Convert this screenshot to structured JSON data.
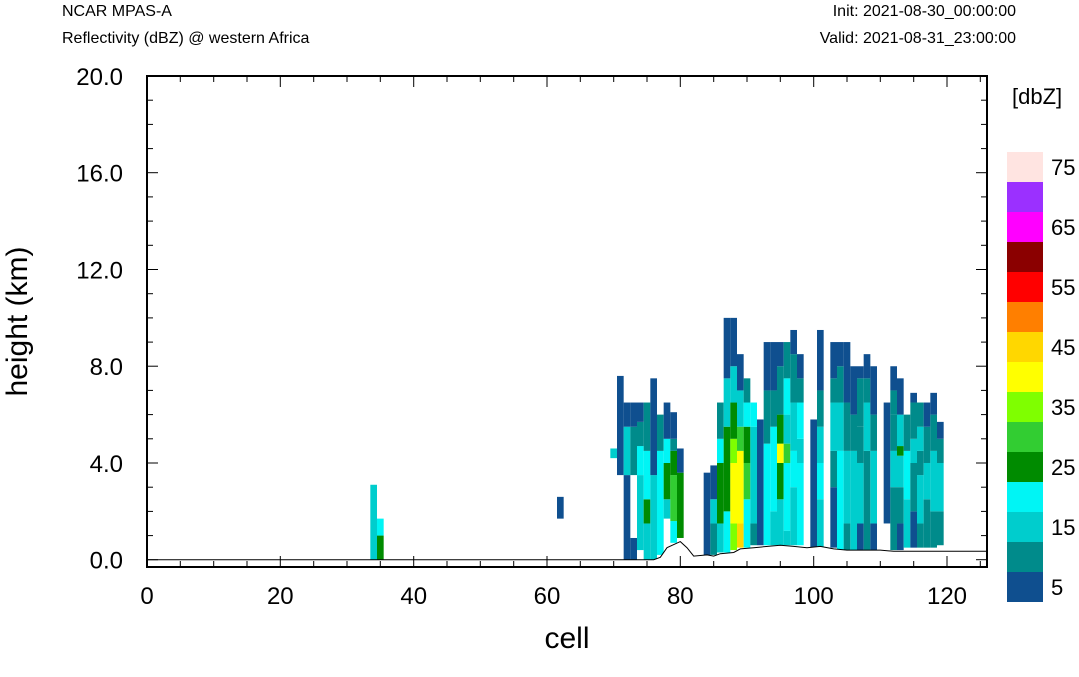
{
  "header": {
    "left_title": "NCAR MPAS-A",
    "left_subtitle": "Reflectivity (dBZ) @ western Africa",
    "right_init": "Init: 2021-08-30_00:00:00",
    "right_valid": "Valid: 2021-08-31_23:00:00"
  },
  "chart_data": {
    "type": "heatmap",
    "title": "",
    "xlabel": "cell",
    "ylabel": "height (km)",
    "xlim": [
      0,
      126
    ],
    "ylim": [
      -0.3,
      20.0
    ],
    "x_ticks": [
      0,
      20,
      40,
      60,
      80,
      100,
      120
    ],
    "x_tick_labels": [
      "0",
      "20",
      "40",
      "60",
      "80",
      "100",
      "120"
    ],
    "y_ticks": [
      0.0,
      4.0,
      8.0,
      12.0,
      16.0,
      20.0
    ],
    "y_tick_labels": [
      "0.0",
      "4.0",
      "8.0",
      "12.0",
      "16.0",
      "20.0"
    ],
    "grid": false,
    "colorbar": {
      "title": "[dbZ]",
      "levels": [
        5,
        10,
        15,
        20,
        25,
        30,
        35,
        40,
        45,
        50,
        55,
        60,
        65,
        70,
        75
      ],
      "labels": [
        "5",
        "15",
        "25",
        "35",
        "45",
        "55",
        "65",
        "75"
      ],
      "colors": [
        "#0f4f8f",
        "#008b8b",
        "#00cdcd",
        "#00f5f5",
        "#008b00",
        "#32cd32",
        "#7fff00",
        "#ffff00",
        "#ffd700",
        "#ff7f00",
        "#ff0000",
        "#8b0000",
        "#ff00ff",
        "#9b30ff",
        "#ffe4e1"
      ]
    },
    "terrain": [
      [
        0,
        0.0
      ],
      [
        76,
        0.0
      ],
      [
        77,
        0.1
      ],
      [
        78,
        0.5
      ],
      [
        80,
        0.75
      ],
      [
        81,
        0.5
      ],
      [
        82,
        0.15
      ],
      [
        84,
        0.2
      ],
      [
        85,
        0.15
      ],
      [
        86,
        0.25
      ],
      [
        88,
        0.3
      ],
      [
        89,
        0.45
      ],
      [
        91,
        0.5
      ],
      [
        95,
        0.6
      ],
      [
        97,
        0.55
      ],
      [
        99,
        0.5
      ],
      [
        101,
        0.55
      ],
      [
        103,
        0.45
      ],
      [
        105,
        0.4
      ],
      [
        110,
        0.4
      ],
      [
        112,
        0.35
      ],
      [
        120,
        0.35
      ],
      [
        126,
        0.35
      ]
    ],
    "columns": [
      {
        "cell": 34,
        "bins": [
          [
            0.0,
            3.1,
            15
          ]
        ]
      },
      {
        "cell": 35,
        "bins": [
          [
            0.0,
            1.0,
            25
          ],
          [
            1.0,
            1.7,
            20
          ]
        ]
      },
      {
        "cell": 62,
        "bins": [
          [
            1.7,
            2.6,
            5
          ]
        ]
      },
      {
        "cell": 70,
        "bins": [
          [
            4.2,
            4.6,
            15
          ]
        ]
      },
      {
        "cell": 71,
        "bins": [
          [
            3.5,
            7.6,
            5
          ]
        ]
      },
      {
        "cell": 72,
        "bins": [
          [
            0.0,
            3.5,
            5
          ],
          [
            3.5,
            5.5,
            15
          ],
          [
            5.5,
            6.5,
            5
          ]
        ]
      },
      {
        "cell": 73,
        "bins": [
          [
            0.0,
            0.9,
            5
          ],
          [
            3.5,
            5.5,
            10
          ],
          [
            5.5,
            6.5,
            5
          ]
        ]
      },
      {
        "cell": 74,
        "bins": [
          [
            0.4,
            3.5,
            15
          ],
          [
            3.5,
            4.7,
            20
          ],
          [
            4.7,
            5.7,
            10
          ],
          [
            5.7,
            6.5,
            5
          ]
        ]
      },
      {
        "cell": 75,
        "bins": [
          [
            0.0,
            1.5,
            15
          ],
          [
            1.5,
            2.5,
            25
          ],
          [
            2.5,
            4.5,
            20
          ],
          [
            4.5,
            6.5,
            10
          ]
        ]
      },
      {
        "cell": 76,
        "bins": [
          [
            0.0,
            3.5,
            15
          ],
          [
            3.5,
            7.5,
            5
          ]
        ]
      },
      {
        "cell": 77,
        "bins": [
          [
            0.2,
            4.5,
            20
          ],
          [
            4.5,
            6.0,
            10
          ]
        ]
      },
      {
        "cell": 78,
        "bins": [
          [
            1.7,
            2.5,
            15
          ],
          [
            2.5,
            4.0,
            25
          ],
          [
            4.0,
            5.0,
            20
          ],
          [
            5.0,
            6.5,
            5
          ]
        ]
      },
      {
        "cell": 79,
        "bins": [
          [
            0.7,
            1.6,
            20
          ],
          [
            1.6,
            3.5,
            30
          ],
          [
            3.5,
            4.5,
            25
          ],
          [
            4.5,
            5.0,
            10
          ],
          [
            5.0,
            6.1,
            5
          ]
        ]
      },
      {
        "cell": 80,
        "bins": [
          [
            0.9,
            3.6,
            25
          ],
          [
            3.6,
            4.6,
            5
          ]
        ]
      },
      {
        "cell": 84,
        "bins": [
          [
            0.1,
            3.6,
            5
          ]
        ]
      },
      {
        "cell": 85,
        "bins": [
          [
            0.2,
            1.5,
            10
          ],
          [
            1.5,
            2.5,
            15
          ],
          [
            2.5,
            3.9,
            5
          ]
        ]
      },
      {
        "cell": 86,
        "bins": [
          [
            0.3,
            1.5,
            15
          ],
          [
            1.5,
            4.0,
            25
          ],
          [
            4.0,
            5.0,
            20
          ],
          [
            5.0,
            6.5,
            10
          ]
        ]
      },
      {
        "cell": 87,
        "bins": [
          [
            0.3,
            2.0,
            20
          ],
          [
            2.0,
            5.5,
            25
          ],
          [
            5.5,
            7.5,
            15
          ],
          [
            7.5,
            10.0,
            5
          ]
        ]
      },
      {
        "cell": 88,
        "bins": [
          [
            0.4,
            1.5,
            35
          ],
          [
            1.5,
            4.0,
            40
          ],
          [
            4.0,
            5.0,
            35
          ],
          [
            5.0,
            6.5,
            25
          ],
          [
            6.5,
            8.0,
            15
          ],
          [
            8.0,
            10.0,
            5
          ]
        ]
      },
      {
        "cell": 89,
        "bins": [
          [
            0.5,
            1.5,
            45
          ],
          [
            1.5,
            4.5,
            40
          ],
          [
            4.5,
            5.5,
            30
          ],
          [
            5.5,
            7.0,
            15
          ],
          [
            7.0,
            8.5,
            5
          ]
        ]
      },
      {
        "cell": 90,
        "bins": [
          [
            0.5,
            2.5,
            20
          ],
          [
            2.5,
            4.0,
            30
          ],
          [
            4.0,
            5.5,
            25
          ],
          [
            5.5,
            6.5,
            20
          ],
          [
            6.5,
            7.5,
            10
          ]
        ]
      },
      {
        "cell": 91,
        "bins": [
          [
            0.6,
            1.5,
            10
          ],
          [
            1.5,
            5.5,
            15
          ],
          [
            5.5,
            6.5,
            20
          ]
        ]
      },
      {
        "cell": 92,
        "bins": [
          [
            0.6,
            5.8,
            5
          ]
        ]
      },
      {
        "cell": 93,
        "bins": [
          [
            0.6,
            4.8,
            20
          ],
          [
            4.8,
            7.0,
            10
          ],
          [
            7.0,
            9.0,
            5
          ]
        ]
      },
      {
        "cell": 94,
        "bins": [
          [
            0.6,
            2.0,
            15
          ],
          [
            2.0,
            4.0,
            20
          ],
          [
            4.0,
            5.5,
            20
          ],
          [
            5.5,
            7.0,
            10
          ],
          [
            7.0,
            9.0,
            5
          ]
        ]
      },
      {
        "cell": 95,
        "bins": [
          [
            0.6,
            2.5,
            15
          ],
          [
            2.5,
            4.0,
            25
          ],
          [
            4.0,
            4.8,
            40
          ],
          [
            4.8,
            6.0,
            25
          ],
          [
            6.0,
            8.0,
            10
          ],
          [
            8.0,
            9.0,
            5
          ]
        ]
      },
      {
        "cell": 96,
        "bins": [
          [
            0.6,
            1.2,
            15
          ],
          [
            1.2,
            4.0,
            20
          ],
          [
            4.0,
            4.8,
            30
          ],
          [
            4.8,
            6.0,
            15
          ],
          [
            6.0,
            7.5,
            20
          ],
          [
            7.5,
            9.0,
            10
          ]
        ]
      },
      {
        "cell": 97,
        "bins": [
          [
            0.6,
            3.0,
            15
          ],
          [
            3.0,
            4.5,
            20
          ],
          [
            4.5,
            6.5,
            15
          ],
          [
            6.5,
            8.5,
            10
          ],
          [
            8.5,
            9.5,
            5
          ]
        ]
      },
      {
        "cell": 98,
        "bins": [
          [
            0.6,
            4.0,
            20
          ],
          [
            4.0,
            5.0,
            15
          ],
          [
            5.0,
            6.5,
            20
          ],
          [
            6.5,
            7.5,
            10
          ],
          [
            7.5,
            8.5,
            5
          ]
        ]
      },
      {
        "cell": 100,
        "bins": [
          [
            0.5,
            5.8,
            5
          ]
        ]
      },
      {
        "cell": 101,
        "bins": [
          [
            0.5,
            2.5,
            15
          ],
          [
            2.5,
            4.0,
            20
          ],
          [
            4.0,
            5.5,
            15
          ],
          [
            5.5,
            7.0,
            10
          ],
          [
            7.0,
            9.5,
            5
          ]
        ]
      },
      {
        "cell": 103,
        "bins": [
          [
            0.5,
            3.0,
            5
          ],
          [
            3.0,
            4.5,
            10
          ],
          [
            4.5,
            6.5,
            15
          ],
          [
            6.5,
            7.5,
            10
          ],
          [
            7.5,
            9.0,
            5
          ]
        ]
      },
      {
        "cell": 104,
        "bins": [
          [
            0.4,
            4.5,
            20
          ],
          [
            4.5,
            6.5,
            15
          ],
          [
            6.5,
            8.0,
            10
          ],
          [
            8.0,
            9.0,
            5
          ]
        ]
      },
      {
        "cell": 105,
        "bins": [
          [
            0.4,
            1.5,
            10
          ],
          [
            1.5,
            4.5,
            15
          ],
          [
            4.5,
            6.5,
            10
          ],
          [
            6.5,
            9.0,
            5
          ]
        ]
      },
      {
        "cell": 106,
        "bins": [
          [
            0.4,
            4.5,
            15
          ],
          [
            4.5,
            6.0,
            10
          ],
          [
            6.0,
            8.0,
            5
          ]
        ]
      },
      {
        "cell": 107,
        "bins": [
          [
            0.4,
            1.5,
            5
          ],
          [
            1.5,
            4.0,
            15
          ],
          [
            4.0,
            5.5,
            10
          ],
          [
            5.5,
            7.5,
            10
          ],
          [
            7.5,
            8.0,
            5
          ]
        ]
      },
      {
        "cell": 108,
        "bins": [
          [
            0.4,
            4.5,
            10
          ],
          [
            4.5,
            6.5,
            15
          ],
          [
            6.5,
            7.5,
            10
          ],
          [
            7.5,
            8.5,
            5
          ]
        ]
      },
      {
        "cell": 109,
        "bins": [
          [
            0.4,
            1.5,
            5
          ],
          [
            1.5,
            4.5,
            15
          ],
          [
            4.5,
            6.0,
            10
          ],
          [
            6.0,
            8.0,
            5
          ]
        ]
      },
      {
        "cell": 111,
        "bins": [
          [
            1.5,
            6.5,
            5
          ]
        ]
      },
      {
        "cell": 112,
        "bins": [
          [
            0.4,
            3.0,
            10
          ],
          [
            3.0,
            4.5,
            15
          ],
          [
            4.5,
            6.0,
            10
          ],
          [
            6.0,
            7.0,
            10
          ],
          [
            7.0,
            8.0,
            5
          ]
        ]
      },
      {
        "cell": 113,
        "bins": [
          [
            0.4,
            1.5,
            5
          ],
          [
            1.5,
            3.0,
            10
          ],
          [
            3.0,
            4.3,
            15
          ],
          [
            4.3,
            4.7,
            25
          ],
          [
            4.7,
            6.0,
            15
          ],
          [
            6.0,
            7.5,
            5
          ]
        ]
      },
      {
        "cell": 114,
        "bins": [
          [
            0.5,
            2.5,
            15
          ],
          [
            2.5,
            4.5,
            20
          ],
          [
            4.5,
            6.0,
            10
          ]
        ]
      },
      {
        "cell": 115,
        "bins": [
          [
            0.5,
            2.0,
            5
          ],
          [
            2.0,
            4.0,
            10
          ],
          [
            4.0,
            5.0,
            15
          ],
          [
            5.0,
            6.5,
            10
          ],
          [
            6.5,
            6.9,
            5
          ]
        ]
      },
      {
        "cell": 116,
        "bins": [
          [
            0.5,
            1.5,
            10
          ],
          [
            1.5,
            3.5,
            15
          ],
          [
            3.5,
            4.5,
            10
          ],
          [
            4.5,
            5.5,
            15
          ],
          [
            5.5,
            6.5,
            10
          ]
        ]
      },
      {
        "cell": 117,
        "bins": [
          [
            0.5,
            2.5,
            10
          ],
          [
            2.5,
            4.0,
            15
          ],
          [
            4.0,
            5.5,
            10
          ],
          [
            5.5,
            6.5,
            5
          ]
        ]
      },
      {
        "cell": 118,
        "bins": [
          [
            0.5,
            2.0,
            10
          ],
          [
            2.0,
            4.5,
            15
          ],
          [
            4.5,
            6.0,
            10
          ],
          [
            6.0,
            6.9,
            5
          ]
        ]
      },
      {
        "cell": 119,
        "bins": [
          [
            0.6,
            2.0,
            10
          ],
          [
            2.0,
            4.0,
            15
          ],
          [
            4.0,
            5.0,
            10
          ],
          [
            5.0,
            5.7,
            5
          ]
        ]
      }
    ]
  }
}
